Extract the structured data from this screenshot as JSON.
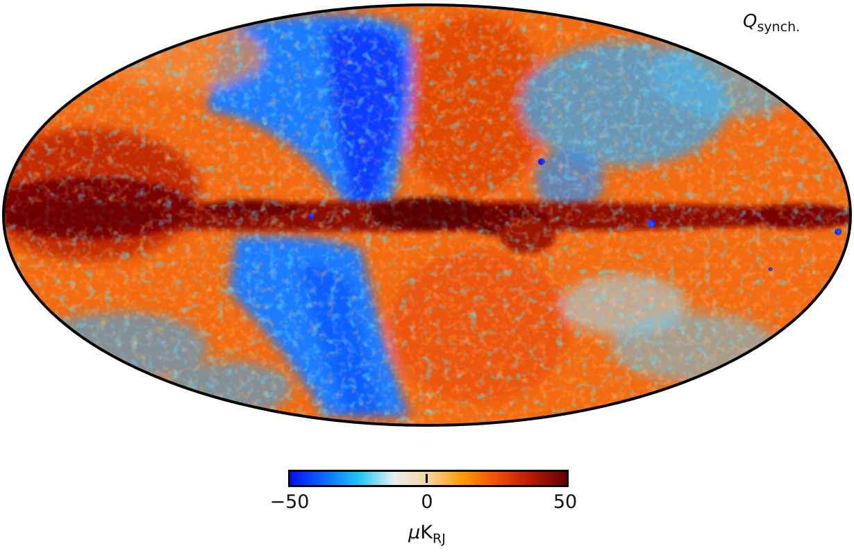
{
  "map": {
    "projection": "mollweide",
    "component": "Q",
    "component_subscript": "synch.",
    "colormap": [
      "#0010ff",
      "#0a6cff",
      "#22c6f2",
      "#e6eef0",
      "#f7d49a",
      "#ff9a00",
      "#f04a08",
      "#b41a00",
      "#650000"
    ]
  },
  "colorbar": {
    "min_label": "−50",
    "mid_label": "0",
    "max_label": "50",
    "unit_symbol": "μ",
    "unit_main": "K",
    "unit_sub": "RJ"
  }
}
